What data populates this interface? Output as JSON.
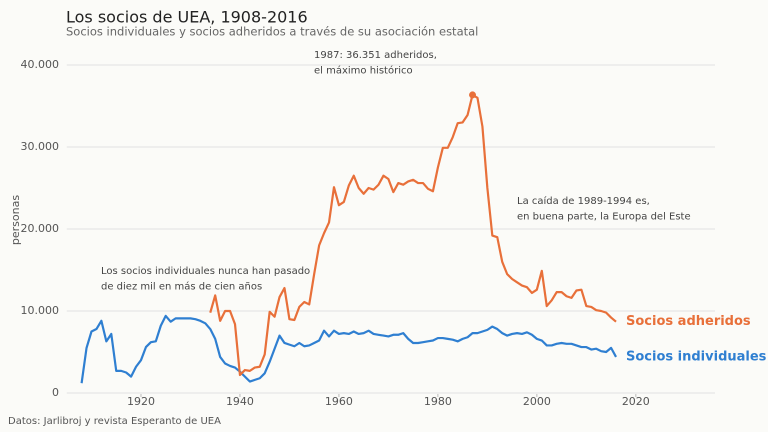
{
  "chart_data": {
    "type": "line",
    "title": "Los socios de UEA, 1908-2016",
    "subtitle": "Socios individuales y socios adheridos a través de su asociación estatal",
    "y_label": "personas",
    "source": "Datos: Jarlibroj y revista Esperanto de UEA",
    "annotations": [
      {
        "lines": [
          "1987: 36.351 adheridos,",
          "el máximo histórico"
        ]
      },
      {
        "lines": [
          "La caída de 1989-1994 es,",
          "en buena parte, la Europa del Este"
        ]
      },
      {
        "lines": [
          "Los socios individuales nunca han pasado",
          "de diez mil en más de cien años"
        ]
      }
    ],
    "x": [
      1908,
      1909,
      1910,
      1911,
      1912,
      1913,
      1914,
      1915,
      1916,
      1917,
      1918,
      1919,
      1920,
      1921,
      1922,
      1923,
      1924,
      1925,
      1926,
      1927,
      1928,
      1929,
      1930,
      1931,
      1932,
      1933,
      1934,
      1935,
      1936,
      1937,
      1938,
      1939,
      1940,
      1941,
      1942,
      1943,
      1944,
      1945,
      1946,
      1947,
      1948,
      1949,
      1950,
      1951,
      1952,
      1953,
      1954,
      1955,
      1956,
      1957,
      1958,
      1959,
      1960,
      1961,
      1962,
      1963,
      1964,
      1965,
      1966,
      1967,
      1968,
      1969,
      1970,
      1971,
      1972,
      1973,
      1974,
      1975,
      1976,
      1977,
      1978,
      1979,
      1980,
      1981,
      1982,
      1983,
      1984,
      1985,
      1986,
      1987,
      1988,
      1989,
      1990,
      1991,
      1992,
      1993,
      1994,
      1995,
      1996,
      1997,
      1998,
      1999,
      2000,
      2001,
      2002,
      2003,
      2004,
      2005,
      2006,
      2007,
      2008,
      2009,
      2010,
      2011,
      2012,
      2013,
      2014,
      2015,
      2016
    ],
    "series": [
      {
        "name": "Socios individuales",
        "color": "#2f7fd1",
        "values": [
          1200,
          5500,
          7500,
          7800,
          8800,
          6300,
          7200,
          2700,
          2700,
          2500,
          2000,
          3200,
          4000,
          5600,
          6200,
          6300,
          8200,
          9400,
          8700,
          9100,
          9100,
          9100,
          9100,
          9000,
          8800,
          8500,
          7800,
          6600,
          4400,
          3600,
          3300,
          3100,
          2600,
          2000,
          1400,
          1600,
          1800,
          2400,
          3800,
          5400,
          7000,
          6100,
          5900,
          5700,
          6100,
          5700,
          5800,
          6100,
          6400,
          7600,
          6900,
          7600,
          7200,
          7300,
          7200,
          7500,
          7200,
          7300,
          7600,
          7200,
          7100,
          7000,
          6900,
          7100,
          7100,
          7300,
          6600,
          6100,
          6100,
          6200,
          6300,
          6400,
          6700,
          6700,
          6600,
          6500,
          6300,
          6600,
          6800,
          7300,
          7300,
          7500,
          7700,
          8100,
          7800,
          7300,
          7000,
          7200,
          7300,
          7200,
          7400,
          7100,
          6600,
          6400,
          5800,
          5800,
          6000,
          6100,
          6000,
          6000,
          5800,
          5600,
          5600,
          5300,
          5400,
          5100,
          5000,
          5500,
          4400
        ]
      },
      {
        "name": "Socios adheridos",
        "color": "#e8703a",
        "highlight": 79,
        "values": [
          null,
          null,
          null,
          null,
          null,
          null,
          null,
          null,
          null,
          null,
          null,
          null,
          null,
          null,
          null,
          null,
          null,
          null,
          null,
          null,
          null,
          null,
          null,
          null,
          null,
          null,
          9800,
          11900,
          8800,
          10000,
          10000,
          8400,
          2200,
          2800,
          2700,
          3100,
          3200,
          4700,
          9900,
          9300,
          11700,
          12800,
          9000,
          8900,
          10500,
          11100,
          10800,
          14500,
          18000,
          19500,
          20800,
          25100,
          22900,
          23300,
          25300,
          26500,
          25000,
          24300,
          25000,
          24800,
          25400,
          26500,
          26100,
          24500,
          25600,
          25400,
          25800,
          26000,
          25600,
          25600,
          24900,
          24600,
          27500,
          29900,
          29900,
          31200,
          32900,
          33000,
          33900,
          36351,
          36000,
          32500,
          25000,
          19200,
          19000,
          16000,
          14500,
          13900,
          13500,
          13100,
          12900,
          12200,
          12600,
          14900,
          10600,
          11300,
          12300,
          12300,
          11800,
          11600,
          12500,
          12600,
          10600,
          10500,
          10100,
          10000,
          9800,
          9200,
          8700
        ]
      }
    ],
    "xlim": [
      1905,
      2036
    ],
    "ylim": [
      0,
      42000
    ],
    "xticks": [
      1920,
      1940,
      1960,
      1980,
      2000,
      2020
    ],
    "yticks": [
      0,
      {
        "value": 10000,
        "label": "10.000"
      },
      {
        "value": 20000,
        "label": "20.000"
      },
      {
        "value": 30000,
        "label": "30.000"
      },
      {
        "value": 40000,
        "label": "40.000"
      }
    ],
    "grid": true
  }
}
